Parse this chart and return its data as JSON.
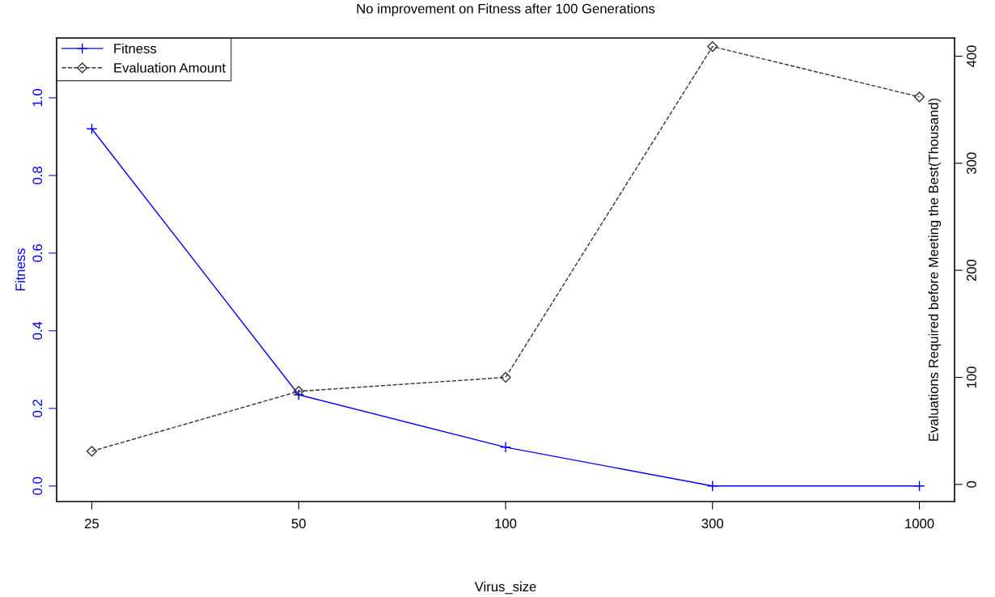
{
  "chart_data": {
    "type": "line",
    "title": "No improvement on Fitness after 100 Generations",
    "xlabel": "Virus_size",
    "ylabel": "Fitness",
    "y2label": "Evaluations Required before Meeting the Best(Thousand)",
    "categories": [
      "25",
      "50",
      "100",
      "300",
      "1000"
    ],
    "series": [
      {
        "name": "Fitness",
        "color": "#0000ff",
        "values": [
          0.92,
          0.235,
          0.1,
          0,
          0
        ],
        "marker": "cross",
        "line_style": "solid"
      },
      {
        "name": "Evaluation Amount",
        "color": "#333333",
        "values": [
          31,
          87,
          100,
          409,
          362
        ],
        "axis": "y2",
        "marker": "diamond",
        "line_style": "dashed"
      }
    ],
    "ylim": [
      -0.04,
      1.154
    ],
    "yticks": [
      {
        "value": 0,
        "label": "0.0"
      },
      0.2,
      0.4,
      0.6,
      0.8,
      {
        "value": 1,
        "label": "1.0"
      }
    ],
    "y2lim": [
      -16,
      417
    ],
    "y2ticks": [
      0,
      100,
      200,
      300,
      400
    ],
    "legend": "top left",
    "grid": false
  }
}
